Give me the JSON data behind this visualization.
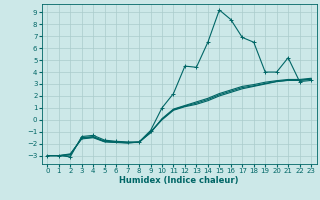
{
  "title": "",
  "xlabel": "Humidex (Indice chaleur)",
  "bg_color": "#cce8e8",
  "grid_color": "#aacccc",
  "line_color": "#006666",
  "xlim": [
    -0.5,
    23.5
  ],
  "ylim": [
    -3.7,
    9.7
  ],
  "xticks": [
    0,
    1,
    2,
    3,
    4,
    5,
    6,
    7,
    8,
    9,
    10,
    11,
    12,
    13,
    14,
    15,
    16,
    17,
    18,
    19,
    20,
    21,
    22,
    23
  ],
  "yticks": [
    -3,
    -2,
    -1,
    0,
    1,
    2,
    3,
    4,
    5,
    6,
    7,
    8,
    9
  ],
  "curve_main": [
    [
      0,
      -3.0
    ],
    [
      1,
      -3.0
    ],
    [
      2,
      -3.1
    ],
    [
      3,
      -1.4
    ],
    [
      4,
      -1.3
    ],
    [
      5,
      -1.7
    ],
    [
      6,
      -1.8
    ],
    [
      7,
      -1.85
    ],
    [
      8,
      -1.85
    ],
    [
      9,
      -0.9
    ],
    [
      10,
      1.0
    ],
    [
      11,
      2.2
    ],
    [
      12,
      4.5
    ],
    [
      13,
      4.4
    ],
    [
      14,
      6.5
    ],
    [
      15,
      9.2
    ],
    [
      16,
      8.4
    ],
    [
      17,
      6.9
    ],
    [
      18,
      6.5
    ],
    [
      19,
      4.0
    ],
    [
      20,
      4.0
    ],
    [
      21,
      5.2
    ],
    [
      22,
      3.2
    ],
    [
      23,
      3.3
    ]
  ],
  "curve_low1": [
    [
      0,
      -3.0
    ],
    [
      1,
      -3.0
    ],
    [
      2,
      -2.95
    ],
    [
      3,
      -1.5
    ],
    [
      4,
      -1.4
    ],
    [
      5,
      -1.8
    ],
    [
      6,
      -1.85
    ],
    [
      7,
      -1.9
    ],
    [
      8,
      -1.9
    ],
    [
      9,
      -1.0
    ],
    [
      10,
      0.0
    ],
    [
      11,
      0.8
    ],
    [
      12,
      1.1
    ],
    [
      13,
      1.3
    ],
    [
      14,
      1.6
    ],
    [
      15,
      2.0
    ],
    [
      16,
      2.3
    ],
    [
      17,
      2.6
    ],
    [
      18,
      2.8
    ],
    [
      19,
      3.0
    ],
    [
      20,
      3.2
    ],
    [
      21,
      3.3
    ],
    [
      22,
      3.3
    ],
    [
      23,
      3.4
    ]
  ],
  "curve_low2": [
    [
      0,
      -3.0
    ],
    [
      1,
      -3.0
    ],
    [
      2,
      -2.9
    ],
    [
      3,
      -1.55
    ],
    [
      4,
      -1.45
    ],
    [
      5,
      -1.82
    ],
    [
      6,
      -1.87
    ],
    [
      7,
      -1.92
    ],
    [
      8,
      -1.88
    ],
    [
      9,
      -1.05
    ],
    [
      10,
      0.05
    ],
    [
      11,
      0.85
    ],
    [
      12,
      1.15
    ],
    [
      13,
      1.4
    ],
    [
      14,
      1.7
    ],
    [
      15,
      2.1
    ],
    [
      16,
      2.4
    ],
    [
      17,
      2.7
    ],
    [
      18,
      2.85
    ],
    [
      19,
      3.05
    ],
    [
      20,
      3.22
    ],
    [
      21,
      3.32
    ],
    [
      22,
      3.32
    ],
    [
      23,
      3.42
    ]
  ],
  "curve_low3": [
    [
      0,
      -3.0
    ],
    [
      1,
      -3.0
    ],
    [
      2,
      -2.85
    ],
    [
      3,
      -1.6
    ],
    [
      4,
      -1.5
    ],
    [
      5,
      -1.85
    ],
    [
      6,
      -1.9
    ],
    [
      7,
      -1.95
    ],
    [
      8,
      -1.85
    ],
    [
      9,
      -1.1
    ],
    [
      10,
      0.1
    ],
    [
      11,
      0.9
    ],
    [
      12,
      1.2
    ],
    [
      13,
      1.5
    ],
    [
      14,
      1.8
    ],
    [
      15,
      2.2
    ],
    [
      16,
      2.5
    ],
    [
      17,
      2.8
    ],
    [
      18,
      2.95
    ],
    [
      19,
      3.15
    ],
    [
      20,
      3.28
    ],
    [
      21,
      3.38
    ],
    [
      22,
      3.38
    ],
    [
      23,
      3.48
    ]
  ],
  "tick_fontsize": 5,
  "xlabel_fontsize": 6,
  "lw": 0.8,
  "marker_size": 2.5
}
